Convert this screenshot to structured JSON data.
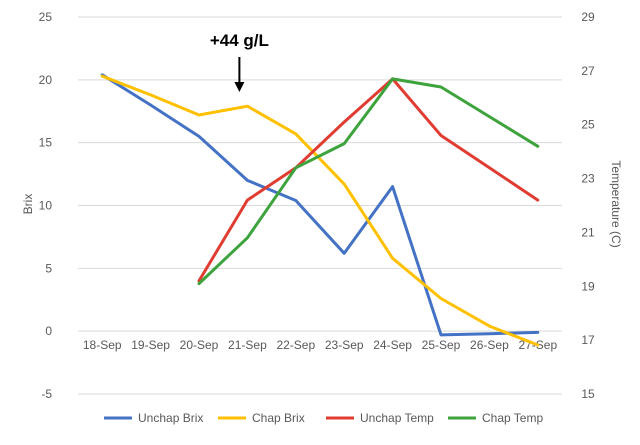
{
  "chart_data": {
    "type": "line",
    "categories": [
      "18-Sep",
      "19-Sep",
      "20-Sep",
      "21-Sep",
      "22-Sep",
      "23-Sep",
      "24-Sep",
      "25-Sep",
      "26-Sep",
      "27-Sep"
    ],
    "y_left": {
      "label": "Brix",
      "range": [
        -5,
        25
      ],
      "ticks": [
        -5,
        0,
        5,
        10,
        15,
        20,
        25
      ]
    },
    "y_right": {
      "label": "Temperature (C)",
      "range": [
        15,
        29
      ],
      "ticks": [
        15,
        17,
        19,
        21,
        23,
        25,
        27,
        29
      ]
    },
    "grid": true,
    "legend_position": "bottom",
    "series": [
      {
        "name": "Unchap Brix",
        "axis": "left",
        "color": "#4472C4",
        "values": [
          20.4,
          18.0,
          15.5,
          12.0,
          10.4,
          6.2,
          11.5,
          -0.3,
          -0.2,
          -0.1
        ]
      },
      {
        "name": "Chap Brix",
        "axis": "left",
        "color": "#FFC000",
        "values": [
          20.3,
          18.8,
          17.2,
          17.9,
          15.7,
          11.7,
          5.8,
          2.6,
          0.4,
          -1.1
        ]
      },
      {
        "name": "Unchap Temp",
        "axis": "right",
        "color": "#E03C31",
        "values": [
          null,
          null,
          19.2,
          22.2,
          23.4,
          25.1,
          26.7,
          24.6,
          23.4,
          22.2
        ]
      },
      {
        "name": "Chap Temp",
        "axis": "right",
        "color": "#3DA33D",
        "values": [
          null,
          null,
          19.1,
          20.8,
          23.4,
          24.3,
          26.7,
          26.4,
          25.3,
          24.2
        ]
      }
    ],
    "annotations": [
      {
        "text": "+44 g/L",
        "category": "21-Sep",
        "arrow": "down"
      }
    ]
  }
}
